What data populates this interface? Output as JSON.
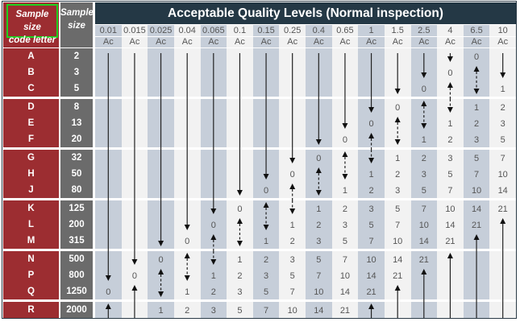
{
  "title": "Acceptable Quality Levels (Normal inspection)",
  "code_letter_header": [
    "Sample size",
    "code letter"
  ],
  "sample_size_header": [
    "Sample",
    "size"
  ],
  "ac_label": "Ac",
  "aql_levels": [
    "0.01",
    "0.015",
    "0.025",
    "0.04",
    "0.065",
    "0.1",
    "0.15",
    "0.25",
    "0.4",
    "0.65",
    "1",
    "1.5",
    "2.5",
    "4",
    "6.5",
    "10"
  ],
  "colors": {
    "code_letter_bg": "#9c2d31",
    "sample_size_bg": "#6b6b6b",
    "title_bg": "#243845",
    "shaded_column": "#c6ced9",
    "light_column": "#f2f2f2",
    "highlight_border": "#1fd11f"
  },
  "rows": [
    {
      "letter": "A",
      "size": "2",
      "cells": [
        "line",
        "line",
        "line",
        "line",
        "line",
        "line",
        "line",
        "line",
        "line",
        "line",
        "line",
        "line",
        "line",
        "down",
        "0",
        "line"
      ]
    },
    {
      "letter": "B",
      "size": "3",
      "cells": [
        "line",
        "line",
        "line",
        "line",
        "line",
        "line",
        "line",
        "line",
        "line",
        "line",
        "line",
        "line",
        "down",
        "0",
        "up-dashed",
        "down"
      ]
    },
    {
      "letter": "C",
      "size": "5",
      "cells": [
        "line",
        "line",
        "line",
        "line",
        "line",
        "line",
        "line",
        "line",
        "line",
        "line",
        "line",
        "down",
        "0",
        "up-dashed",
        "dashed-down",
        "1"
      ]
    },
    {
      "letter": "D",
      "size": "8",
      "cells": [
        "line",
        "line",
        "line",
        "line",
        "line",
        "line",
        "line",
        "line",
        "line",
        "line",
        "down",
        "0",
        "up-dashed",
        "dashed-down",
        "1",
        "2"
      ]
    },
    {
      "letter": "E",
      "size": "13",
      "cells": [
        "line",
        "line",
        "line",
        "line",
        "line",
        "line",
        "line",
        "line",
        "line",
        "down",
        "0",
        "up-dashed",
        "dashed-down",
        "1",
        "2",
        "3"
      ]
    },
    {
      "letter": "F",
      "size": "20",
      "cells": [
        "line",
        "line",
        "line",
        "line",
        "line",
        "line",
        "line",
        "line",
        "down",
        "0",
        "up-dashed",
        "dashed-down",
        "1",
        "2",
        "3",
        "5"
      ]
    },
    {
      "letter": "G",
      "size": "32",
      "cells": [
        "line",
        "line",
        "line",
        "line",
        "line",
        "line",
        "line",
        "down",
        "0",
        "up-dashed",
        "dashed-down",
        "1",
        "2",
        "3",
        "5",
        "7"
      ]
    },
    {
      "letter": "H",
      "size": "50",
      "cells": [
        "line",
        "line",
        "line",
        "line",
        "line",
        "line",
        "down",
        "0",
        "up-dashed",
        "dashed-down",
        "1",
        "2",
        "3",
        "5",
        "7",
        "10"
      ]
    },
    {
      "letter": "J",
      "size": "80",
      "cells": [
        "line",
        "line",
        "line",
        "line",
        "line",
        "down",
        "0",
        "up-dashed",
        "dashed-down",
        "1",
        "2",
        "3",
        "5",
        "7",
        "10",
        "14"
      ]
    },
    {
      "letter": "K",
      "size": "125",
      "cells": [
        "line",
        "line",
        "line",
        "line",
        "down",
        "0",
        "up-dashed",
        "dashed-down",
        "1",
        "2",
        "3",
        "5",
        "7",
        "10",
        "14",
        "21"
      ]
    },
    {
      "letter": "L",
      "size": "200",
      "cells": [
        "line",
        "line",
        "line",
        "down",
        "0",
        "up-dashed",
        "dashed-down",
        "1",
        "2",
        "3",
        "5",
        "7",
        "10",
        "14",
        "21",
        "up"
      ]
    },
    {
      "letter": "M",
      "size": "315",
      "cells": [
        "line",
        "line",
        "down",
        "0",
        "up-dashed",
        "dashed-down",
        "1",
        "2",
        "3",
        "5",
        "7",
        "10",
        "14",
        "21",
        "up",
        "line"
      ]
    },
    {
      "letter": "N",
      "size": "500",
      "cells": [
        "line",
        "down",
        "0",
        "up-dashed",
        "dashed-down",
        "1",
        "2",
        "3",
        "5",
        "7",
        "10",
        "14",
        "21",
        "up",
        "line",
        "line"
      ]
    },
    {
      "letter": "P",
      "size": "800",
      "cells": [
        "down",
        "0",
        "up-dashed",
        "dashed-down",
        "1",
        "2",
        "3",
        "5",
        "7",
        "10",
        "14",
        "21",
        "up",
        "line",
        "line",
        "line"
      ]
    },
    {
      "letter": "Q",
      "size": "1250",
      "cells": [
        "0",
        "up",
        "dashed-down",
        "1",
        "2",
        "3",
        "5",
        "7",
        "10",
        "14",
        "21",
        "up",
        "line",
        "line",
        "line",
        "line"
      ]
    },
    {
      "letter": "R",
      "size": "2000",
      "cells": [
        "up",
        "line",
        "1",
        "2",
        "3",
        "5",
        "7",
        "10",
        "14",
        "21",
        "up",
        "line",
        "line",
        "line",
        "line",
        "line"
      ]
    }
  ]
}
